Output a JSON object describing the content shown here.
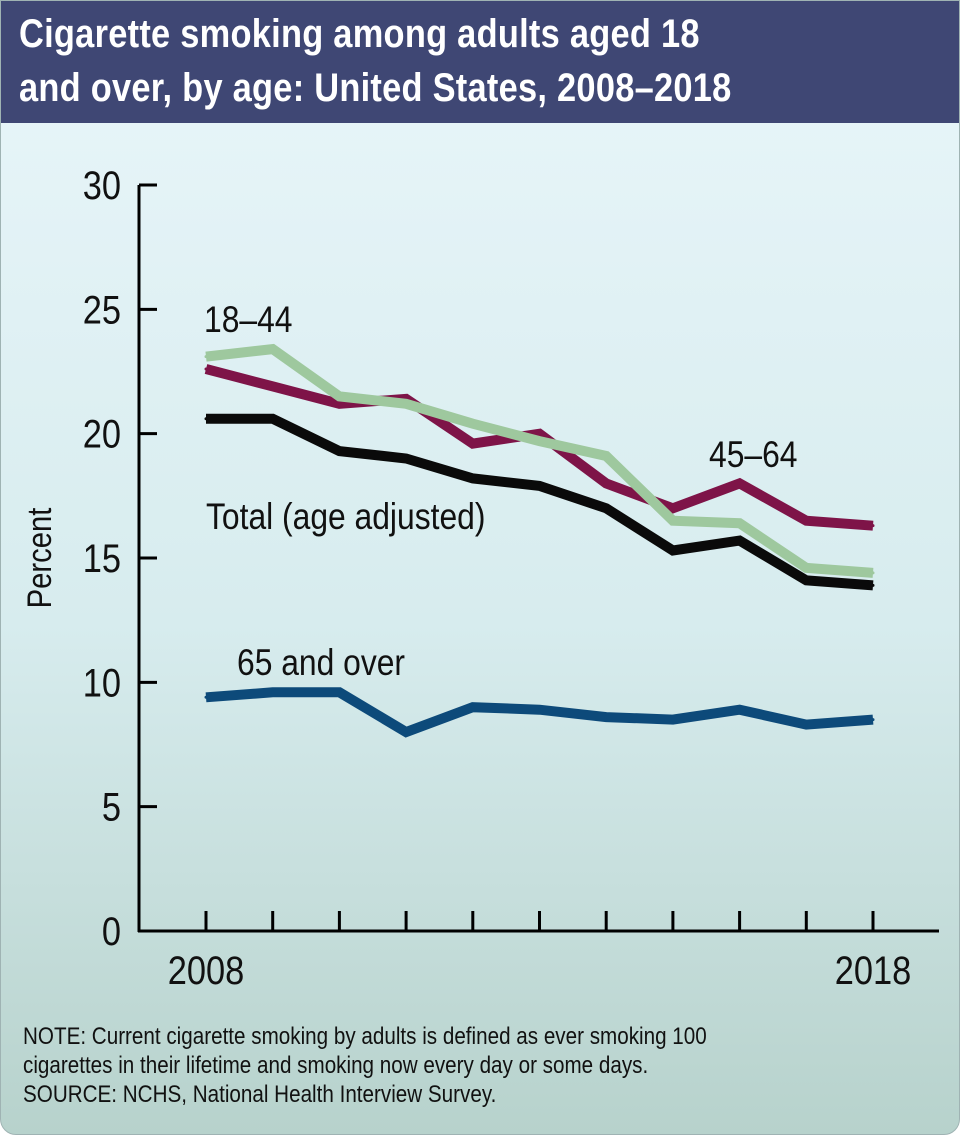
{
  "header": {
    "title_line1": "Cigarette smoking among adults aged 18",
    "title_line2": "and over, by age: United States, 2008–2018",
    "background_color": "#3f4774"
  },
  "chart_data": {
    "type": "line",
    "ylabel": "Percent",
    "ylim": [
      0,
      30
    ],
    "y_ticks": [
      "0",
      "5",
      "10",
      "15",
      "20",
      "25",
      "30"
    ],
    "x": [
      2008,
      2009,
      2010,
      2011,
      2012,
      2013,
      2014,
      2015,
      2016,
      2017,
      2018
    ],
    "x_tick_labels": [
      "2008",
      "",
      "",
      "",
      "",
      "",
      "",
      "",
      "",
      "",
      "2018"
    ],
    "series": [
      {
        "key": "s4564",
        "name": "45–64",
        "color": "#7e1448",
        "values": [
          22.6,
          21.9,
          21.2,
          21.4,
          19.6,
          20.0,
          18.0,
          17.0,
          18.0,
          16.5,
          16.3
        ]
      },
      {
        "key": "s1844",
        "name": "18–44",
        "color": "#9ec89e",
        "values": [
          23.1,
          23.4,
          21.5,
          21.2,
          20.4,
          19.7,
          19.1,
          16.5,
          16.4,
          14.6,
          14.4
        ]
      },
      {
        "key": "total",
        "name": "Total (age adjusted)",
        "color": "#0a0a0a",
        "values": [
          20.6,
          20.6,
          19.3,
          19.0,
          18.2,
          17.9,
          17.0,
          15.3,
          15.7,
          14.1,
          13.9
        ]
      },
      {
        "key": "s65",
        "name": "65 and over",
        "color": "#0d4a7a",
        "values": [
          9.4,
          9.6,
          9.6,
          8.0,
          9.0,
          8.9,
          8.6,
          8.5,
          8.9,
          8.3,
          8.5
        ]
      }
    ]
  },
  "note": {
    "line1": "NOTE: Current cigarette smoking by adults is defined as ever smoking 100",
    "line2": "cigarettes in their lifetime and smoking now every day or some days.",
    "line3": "SOURCE: NCHS, National Health Interview Survey."
  }
}
